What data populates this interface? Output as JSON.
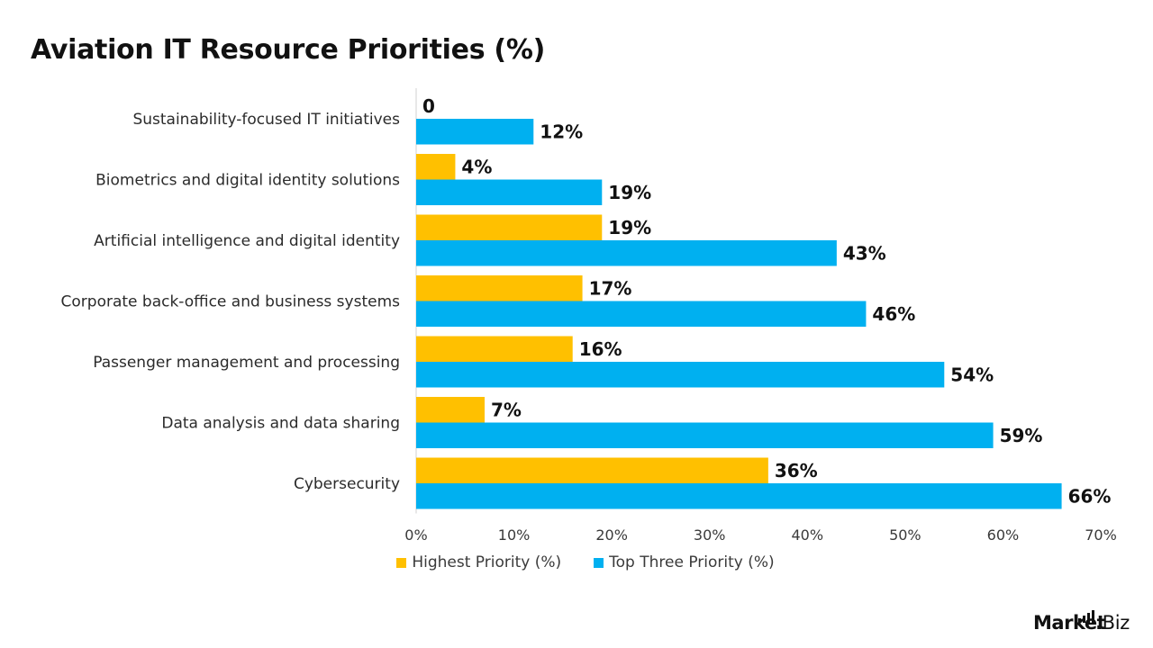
{
  "title": "Aviation IT Resource Priorities (%)",
  "brand": {
    "main": "Market",
    "dot": ".",
    "sub": "Biz"
  },
  "colors": {
    "highest": "#FFC000",
    "top_three": "#00B0F0",
    "axis": "#d0d0d0"
  },
  "chart_data": {
    "type": "bar",
    "orientation": "horizontal",
    "title": "Aviation IT Resource Priorities (%)",
    "categories": [
      "Sustainability-focused IT initiatives",
      "Biometrics and digital identity solutions",
      "Artificial intelligence and digital identity",
      "Corporate back-office and business systems",
      "Passenger management and processing",
      "Data analysis and data sharing",
      "Cybersecurity"
    ],
    "series": [
      {
        "name": "Highest Priority (%)",
        "values": [
          0,
          4,
          19,
          17,
          16,
          7,
          36
        ],
        "labels": [
          "0",
          "4%",
          "19%",
          "17%",
          "16%",
          "7%",
          "36%"
        ]
      },
      {
        "name": "Top Three Priority (%)",
        "values": [
          12,
          19,
          43,
          46,
          54,
          59,
          66
        ],
        "labels": [
          "12%",
          "19%",
          "43%",
          "46%",
          "54%",
          "59%",
          "66%"
        ]
      }
    ],
    "xlim": [
      0,
      70
    ],
    "xticks": [
      "0%",
      "10%",
      "20%",
      "30%",
      "40%",
      "50%",
      "60%",
      "70%"
    ],
    "grid": false,
    "legend": "bottom"
  }
}
